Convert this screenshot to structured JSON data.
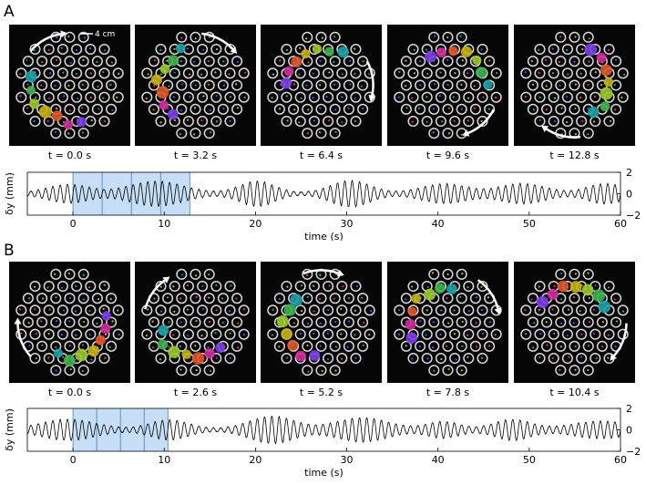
{
  "figure": {
    "panels": [
      {
        "label": "A",
        "scale_bar": "4 cm",
        "frames": [
          "t = 0.0 s",
          "t = 3.2 s",
          "t = 6.4 s",
          "t = 9.6 s",
          "t = 12.8 s"
        ],
        "highlight_interval": [
          0,
          12.8
        ],
        "frame_times": [
          0,
          3.2,
          6.4,
          9.6,
          12.8
        ]
      },
      {
        "label": "B",
        "frames": [
          "t = 0.0 s",
          "t = 2.6 s",
          "t = 5.2 s",
          "t = 7.8 s",
          "t = 10.4 s"
        ],
        "highlight_interval": [
          0,
          10.4
        ],
        "frame_times": [
          0,
          2.6,
          5.2,
          7.8,
          10.4
        ]
      }
    ]
  },
  "chart_data": [
    {
      "type": "line",
      "xlabel": "time (s)",
      "ylabel": "δy (mm)",
      "xlim": [
        -5,
        60
      ],
      "ylim": [
        -2,
        2
      ],
      "xticks": [
        "0",
        "10",
        "20",
        "30",
        "40",
        "50",
        "60"
      ],
      "yticks": [
        "2",
        "0",
        "−2"
      ]
    },
    {
      "type": "line",
      "xlabel": "time (s)",
      "ylabel": "δy (mm)",
      "xlim": [
        -5,
        60
      ],
      "ylim": [
        -2,
        2
      ],
      "xticks": [
        "0",
        "10",
        "20",
        "30",
        "40",
        "50",
        "60"
      ],
      "yticks": [
        "2",
        "0",
        "−2"
      ]
    }
  ],
  "colors": {
    "highlight": "#bcd8f5",
    "highlight_edge": "#3a6ea5",
    "blob_palette": [
      "#7b3fe4",
      "#d02c9a",
      "#e0572a",
      "#c9b20f",
      "#9cc92e",
      "#3fb34f",
      "#1fa0a8",
      "#3a64d6"
    ]
  }
}
